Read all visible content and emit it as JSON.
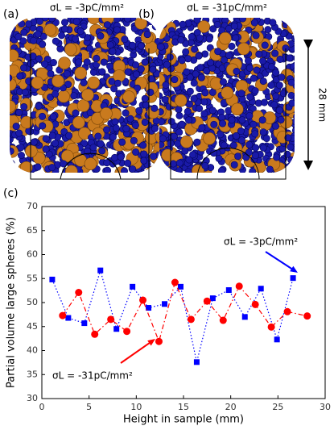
{
  "panels": {
    "a_label": "(a)",
    "a_title": "σL = -3pC/mm²",
    "b_label": "(b)",
    "b_title": "σL = -31pC/mm²",
    "scale_label": "28 mm",
    "c_label": "(c)"
  },
  "chart_data": {
    "type": "line",
    "x_label": "Height in sample (mm)",
    "y_label": "Partial volume large spheres (%)",
    "xlim": [
      0,
      30
    ],
    "xticks": [
      0,
      5,
      10,
      15,
      20,
      25,
      30
    ],
    "ylim": [
      30,
      70
    ],
    "yticks": [
      30,
      35,
      40,
      45,
      50,
      55,
      60,
      65,
      70
    ],
    "series": [
      {
        "name": "σL = -3pC/mm²",
        "color": "#0000ff",
        "marker": "square",
        "linestyle": "dotted",
        "x": [
          1.1,
          2.8,
          4.5,
          6.2,
          7.9,
          9.6,
          11.3,
          13.0,
          14.7,
          16.4,
          18.1,
          19.8,
          21.5,
          23.2,
          24.9,
          26.6
        ],
        "values": [
          54.8,
          46.8,
          45.7,
          56.7,
          44.5,
          53.3,
          48.9,
          49.7,
          53.3,
          37.6,
          50.9,
          52.6,
          47.0,
          52.9,
          42.3,
          55.1
        ]
      },
      {
        "name": "σL = -31pC/mm²",
        "color": "#ff0000",
        "marker": "circle",
        "linestyle": "dashdot",
        "x": [
          2.2,
          3.9,
          5.6,
          7.3,
          9.0,
          10.7,
          12.4,
          14.1,
          15.8,
          17.5,
          19.2,
          20.9,
          22.6,
          24.3,
          26.0,
          28.1
        ],
        "values": [
          47.3,
          52.1,
          43.4,
          46.5,
          44.0,
          50.5,
          41.9,
          54.2,
          46.5,
          50.3,
          46.3,
          53.4,
          49.6,
          44.9,
          48.1,
          47.2
        ]
      }
    ]
  }
}
